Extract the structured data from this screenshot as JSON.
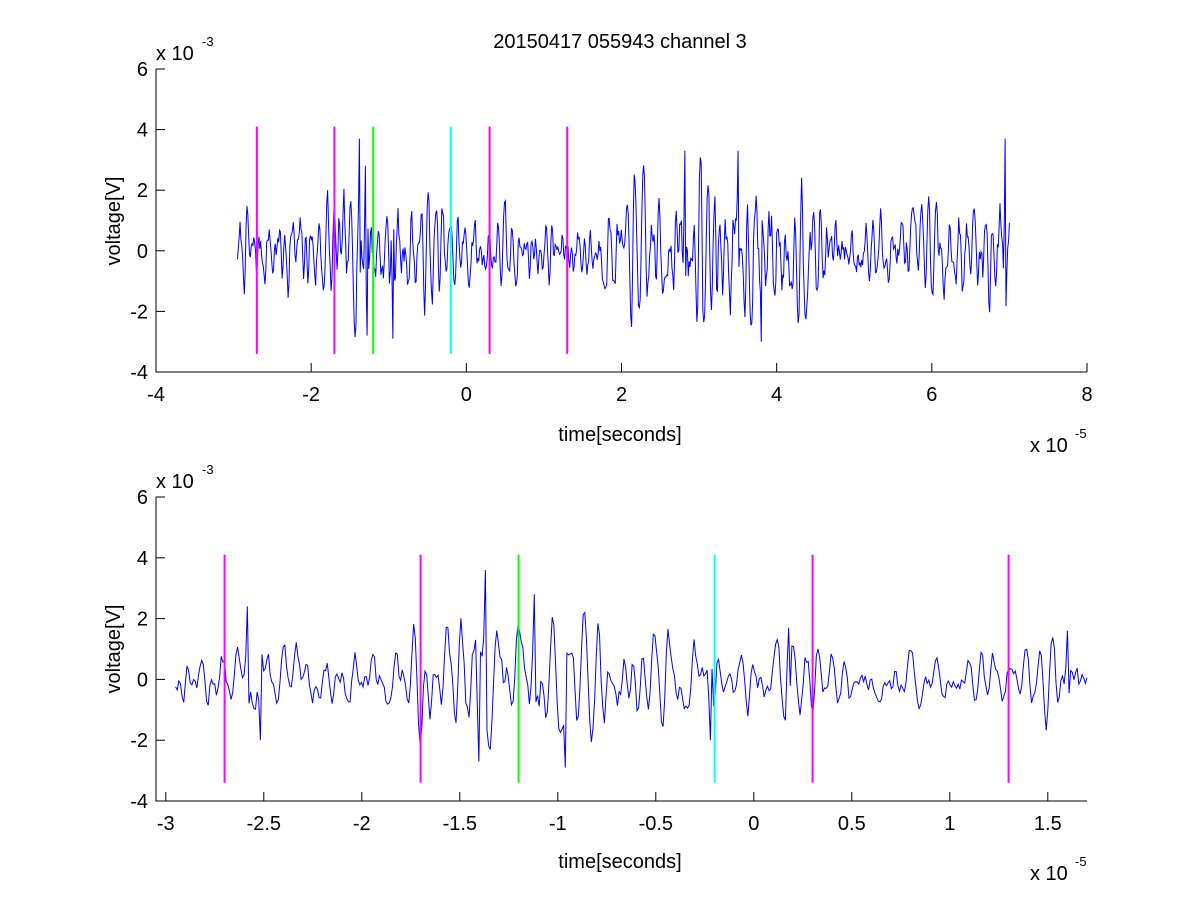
{
  "figure": {
    "title": "20150417 055943 channel 3"
  },
  "chart_data": [
    {
      "type": "line",
      "xlabel": "time[seconds]",
      "ylabel": "voltage[V]",
      "x_exponent_label": "x 10",
      "x_exponent": "-5",
      "y_exponent_label": "x 10",
      "y_exponent": "-3",
      "xlim": [
        -4,
        8
      ],
      "ylim": [
        -4,
        6
      ],
      "x_ticks": [
        -4,
        -2,
        0,
        2,
        4,
        6,
        8
      ],
      "y_ticks": [
        -4,
        -2,
        0,
        2,
        4,
        6
      ],
      "series_color": "#0000ff",
      "signal": {
        "x_start": -2.95,
        "x_end": 7.0,
        "sample_count": 900,
        "seed": 7,
        "amplitude_profile": [
          {
            "x": -2.95,
            "amp": 0.8
          },
          {
            "x": -1.4,
            "amp": 1.2
          },
          {
            "x": 0.0,
            "amp": 0.8
          },
          {
            "x": 1.2,
            "amp": 0.7
          },
          {
            "x": 2.8,
            "amp": 1.3
          },
          {
            "x": 3.8,
            "amp": 1.5
          },
          {
            "x": 5.0,
            "amp": 0.8
          },
          {
            "x": 6.2,
            "amp": 0.9
          },
          {
            "x": 7.0,
            "amp": 1.4
          }
        ],
        "peaks": [
          {
            "x": -1.38,
            "y": 3.7
          },
          {
            "x": -1.3,
            "y": 2.8
          },
          {
            "x": -1.28,
            "y": -2.8
          },
          {
            "x": -0.95,
            "y": -2.9
          },
          {
            "x": 2.82,
            "y": 3.3
          },
          {
            "x": 3.5,
            "y": 3.3
          },
          {
            "x": 3.8,
            "y": -3.0
          },
          {
            "x": 6.95,
            "y": 3.7
          }
        ]
      },
      "markers": [
        {
          "x": -2.7,
          "ymin": -3.4,
          "ymax": 4.1,
          "color": "#ff00ff"
        },
        {
          "x": -1.7,
          "ymin": -3.4,
          "ymax": 4.1,
          "color": "#ff00ff"
        },
        {
          "x": -1.2,
          "ymin": -3.4,
          "ymax": 4.1,
          "color": "#00ff00"
        },
        {
          "x": -0.2,
          "ymin": -3.4,
          "ymax": 4.1,
          "color": "#00ffff"
        },
        {
          "x": 0.3,
          "ymin": -3.4,
          "ymax": 4.1,
          "color": "#ff00ff"
        },
        {
          "x": 1.3,
          "ymin": -3.4,
          "ymax": 4.1,
          "color": "#ff00ff"
        }
      ]
    },
    {
      "type": "line",
      "xlabel": "time[seconds]",
      "ylabel": "voltage[V]",
      "x_exponent_label": "x 10",
      "x_exponent": "-5",
      "y_exponent_label": "x 10",
      "y_exponent": "-3",
      "xlim": [
        -3.05,
        1.7
      ],
      "ylim": [
        -4,
        6
      ],
      "x_ticks": [
        -3,
        -2.5,
        -2,
        -1.5,
        -1,
        -0.5,
        0,
        0.5,
        1,
        1.5
      ],
      "x_tick_labels": [
        "-3",
        "-2.5",
        "-2",
        "-1.5",
        "-1",
        "-0.5",
        "0",
        "0.5",
        "1",
        "1.5"
      ],
      "y_ticks": [
        -4,
        -2,
        0,
        2,
        4,
        6
      ],
      "series_color": "#0000ff",
      "signal": {
        "x_start": -2.95,
        "x_end": 1.7,
        "sample_count": 560,
        "seed": 13,
        "amplitude_profile": [
          {
            "x": -2.95,
            "amp": 0.7
          },
          {
            "x": -2.0,
            "amp": 0.6
          },
          {
            "x": -1.4,
            "amp": 1.2
          },
          {
            "x": -1.0,
            "amp": 1.0
          },
          {
            "x": -0.3,
            "amp": 0.8
          },
          {
            "x": 0.5,
            "amp": 0.6
          },
          {
            "x": 1.2,
            "amp": 0.5
          },
          {
            "x": 1.7,
            "amp": 0.7
          }
        ],
        "peaks": [
          {
            "x": -2.58,
            "y": 2.4
          },
          {
            "x": -2.52,
            "y": -2.0
          },
          {
            "x": -1.37,
            "y": 3.6
          },
          {
            "x": -1.4,
            "y": -2.7
          },
          {
            "x": -1.12,
            "y": 2.8
          },
          {
            "x": -0.96,
            "y": -2.9
          },
          {
            "x": -0.22,
            "y": -2.0
          },
          {
            "x": 0.18,
            "y": 1.7
          },
          {
            "x": 1.6,
            "y": 1.6
          }
        ]
      },
      "markers": [
        {
          "x": -2.7,
          "ymin": -3.4,
          "ymax": 4.1,
          "color": "#ff00ff"
        },
        {
          "x": -1.7,
          "ymin": -3.4,
          "ymax": 4.1,
          "color": "#ff00ff"
        },
        {
          "x": -1.2,
          "ymin": -3.4,
          "ymax": 4.1,
          "color": "#00ff00"
        },
        {
          "x": -0.2,
          "ymin": -3.4,
          "ymax": 4.1,
          "color": "#00ffff"
        },
        {
          "x": 0.3,
          "ymin": -3.4,
          "ymax": 4.1,
          "color": "#ff00ff"
        },
        {
          "x": 1.3,
          "ymin": -3.4,
          "ymax": 4.1,
          "color": "#ff00ff"
        }
      ]
    }
  ]
}
